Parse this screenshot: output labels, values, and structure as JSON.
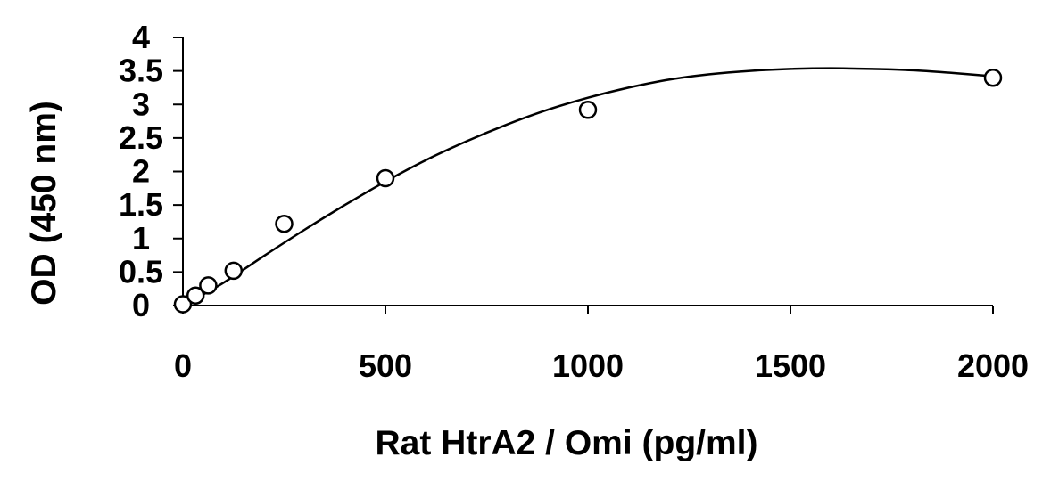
{
  "chart_data": {
    "type": "scatter",
    "title": "",
    "xlabel": "Rat HtrA2 / Omi (pg/ml)",
    "ylabel": "OD (450 nm)",
    "xlim": [
      0,
      2000
    ],
    "ylim": [
      0,
      4
    ],
    "x_ticks": [
      0,
      500,
      1000,
      1500,
      2000
    ],
    "x_tick_labels": [
      "0",
      "500",
      "1000",
      "1500",
      "2000"
    ],
    "y_ticks": [
      0,
      0.5,
      1,
      1.5,
      2,
      2.5,
      3,
      3.5,
      4
    ],
    "y_tick_labels": [
      "0",
      "0.5",
      "1",
      "1.5",
      "2",
      "2.5",
      "3",
      "3.5",
      "4"
    ],
    "grid": false,
    "legend": "none",
    "series": [
      {
        "type": "scatter",
        "marker": "open-circle",
        "x": [
          0,
          31.25,
          62.5,
          125,
          250,
          500,
          1000,
          2000
        ],
        "y": [
          0.02,
          0.15,
          0.3,
          0.52,
          1.22,
          1.9,
          2.92,
          3.4
        ]
      },
      {
        "type": "line",
        "fit": "polynomial trend curve",
        "x": [
          0,
          100,
          200,
          300,
          400,
          500,
          600,
          700,
          800,
          900,
          1000,
          1100,
          1200,
          1300,
          1400,
          1500,
          1600,
          1700,
          1800,
          1900,
          2000
        ],
        "y": [
          0.0,
          0.34,
          0.74,
          1.13,
          1.5,
          1.85,
          2.17,
          2.45,
          2.7,
          2.92,
          3.1,
          3.25,
          3.37,
          3.45,
          3.5,
          3.53,
          3.54,
          3.53,
          3.51,
          3.47,
          3.42
        ]
      }
    ],
    "colors": {
      "axis": "#000000",
      "marker_stroke": "#000000",
      "marker_fill": "#ffffff",
      "curve": "#000000"
    }
  }
}
